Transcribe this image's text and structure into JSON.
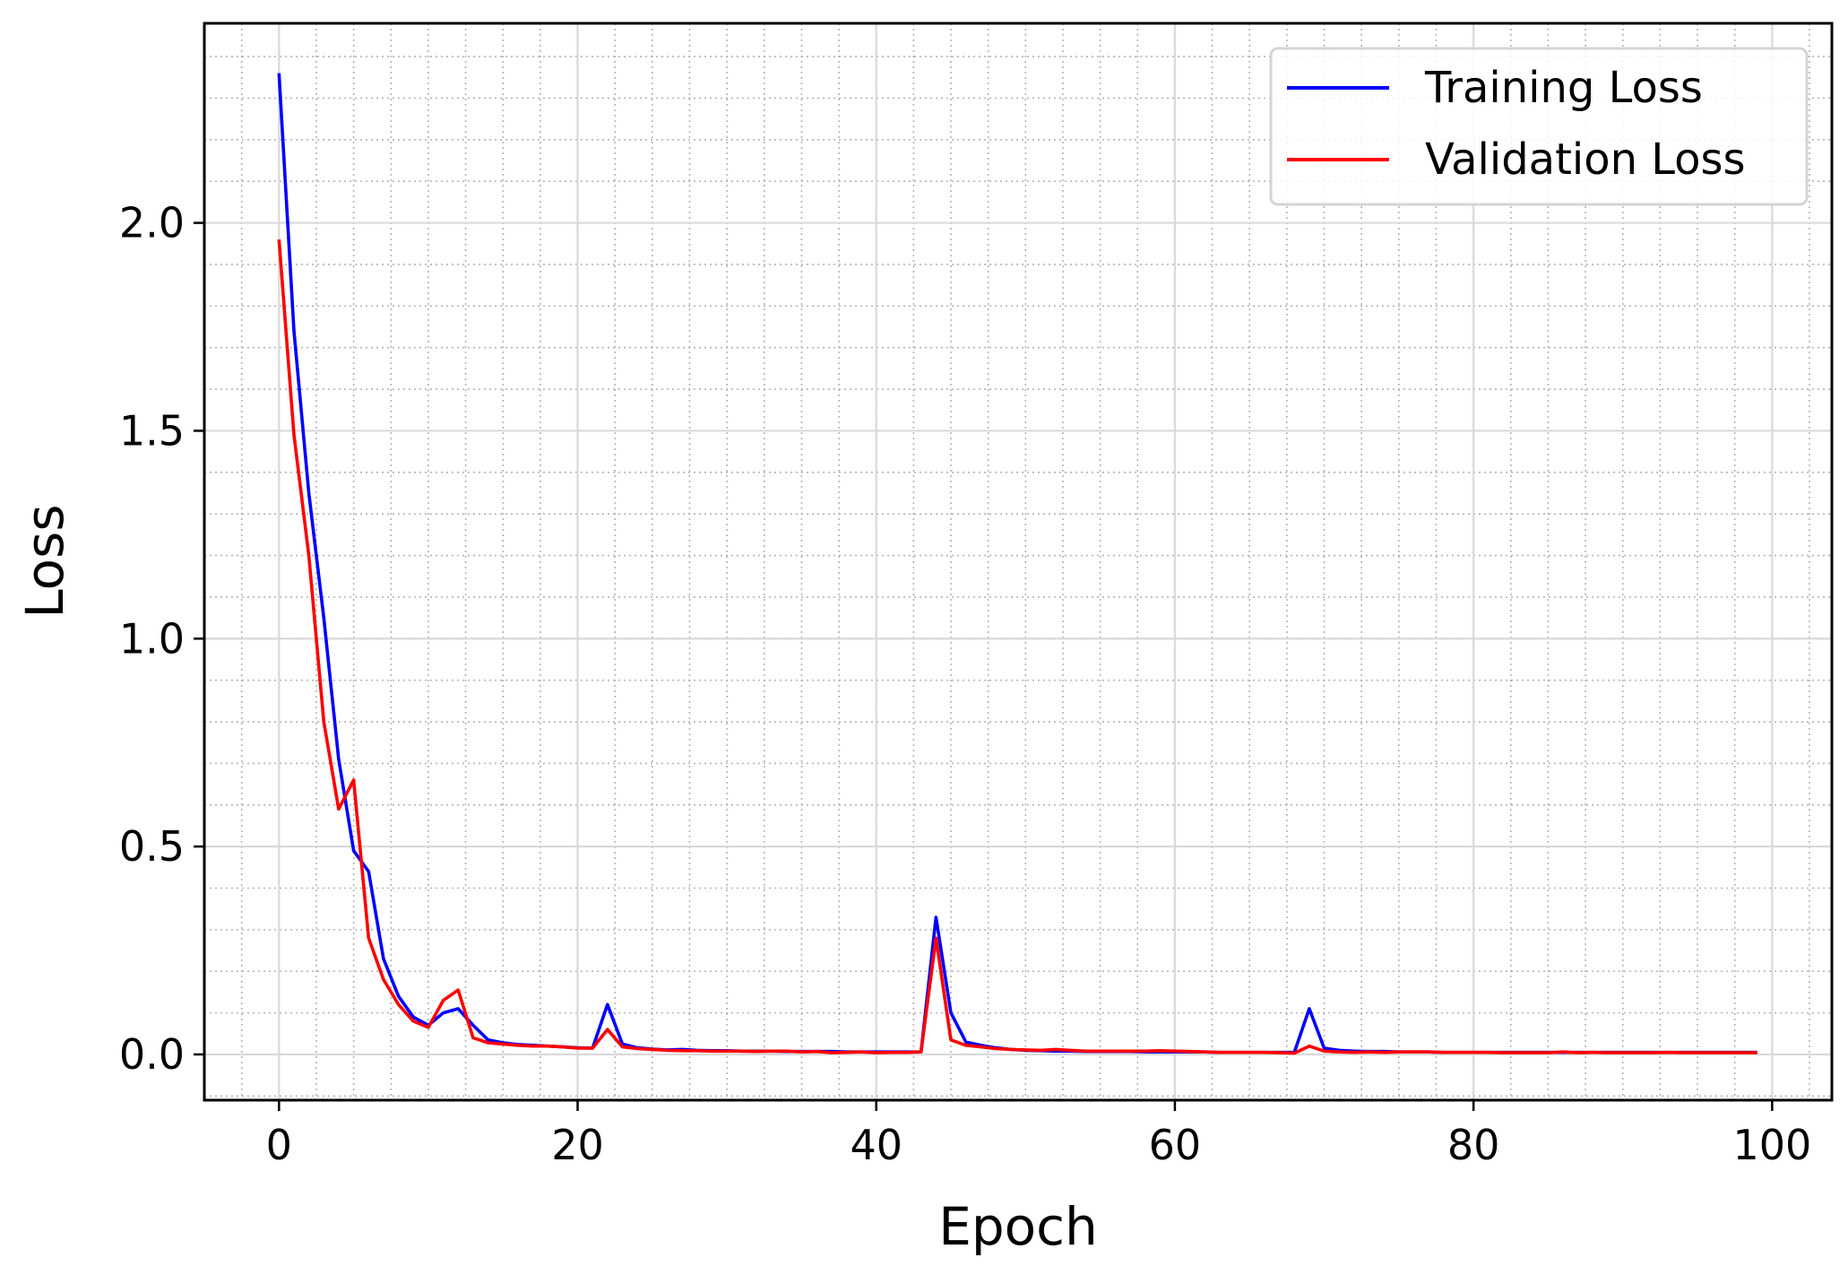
{
  "chart_data": {
    "type": "line",
    "xlabel": "Epoch",
    "ylabel": "Loss",
    "xlim": [
      -5,
      104
    ],
    "ylim": [
      -0.11,
      2.48
    ],
    "xticks": [
      0,
      20,
      40,
      60,
      80,
      100
    ],
    "yticks": [
      0.0,
      0.5,
      1.0,
      1.5,
      2.0
    ],
    "xtick_labels": [
      "0",
      "20",
      "40",
      "60",
      "80",
      "100"
    ],
    "ytick_labels": [
      "0.0",
      "0.5",
      "1.0",
      "1.5",
      "2.0"
    ],
    "x_minor_step": 2.5,
    "y_minor_step": 0.1,
    "grid": true,
    "legend_position": "top-right",
    "series": [
      {
        "name": "Training Loss",
        "color": "#0000ff",
        "values": [
          2.36,
          1.74,
          1.35,
          1.05,
          0.71,
          0.49,
          0.44,
          0.23,
          0.14,
          0.09,
          0.07,
          0.1,
          0.11,
          0.07,
          0.035,
          0.028,
          0.024,
          0.022,
          0.02,
          0.018,
          0.016,
          0.015,
          0.12,
          0.025,
          0.016,
          0.013,
          0.011,
          0.012,
          0.01,
          0.009,
          0.009,
          0.008,
          0.008,
          0.008,
          0.007,
          0.007,
          0.007,
          0.007,
          0.006,
          0.006,
          0.006,
          0.006,
          0.006,
          0.006,
          0.33,
          0.1,
          0.03,
          0.022,
          0.016,
          0.012,
          0.01,
          0.009,
          0.008,
          0.008,
          0.007,
          0.007,
          0.007,
          0.007,
          0.006,
          0.006,
          0.006,
          0.006,
          0.006,
          0.005,
          0.005,
          0.005,
          0.005,
          0.005,
          0.005,
          0.11,
          0.015,
          0.01,
          0.008,
          0.007,
          0.007,
          0.006,
          0.006,
          0.006,
          0.005,
          0.005,
          0.005,
          0.005,
          0.005,
          0.005,
          0.005,
          0.005,
          0.005,
          0.005,
          0.005,
          0.005,
          0.005,
          0.005,
          0.005,
          0.005,
          0.005,
          0.005,
          0.005,
          0.005,
          0.005,
          0.005
        ]
      },
      {
        "name": "Validation Loss",
        "color": "#ff0000",
        "values": [
          1.96,
          1.49,
          1.2,
          0.8,
          0.59,
          0.66,
          0.28,
          0.18,
          0.12,
          0.08,
          0.065,
          0.13,
          0.155,
          0.04,
          0.028,
          0.025,
          0.022,
          0.02,
          0.02,
          0.018,
          0.015,
          0.015,
          0.06,
          0.018,
          0.014,
          0.012,
          0.01,
          0.009,
          0.009,
          0.008,
          0.008,
          0.008,
          0.007,
          0.008,
          0.008,
          0.006,
          0.007,
          0.004,
          0.005,
          0.006,
          0.004,
          0.005,
          0.005,
          0.006,
          0.28,
          0.035,
          0.022,
          0.018,
          0.014,
          0.012,
          0.011,
          0.01,
          0.012,
          0.01,
          0.008,
          0.008,
          0.008,
          0.008,
          0.008,
          0.009,
          0.008,
          0.007,
          0.006,
          0.005,
          0.005,
          0.005,
          0.005,
          0.004,
          0.003,
          0.02,
          0.008,
          0.006,
          0.005,
          0.006,
          0.005,
          0.006,
          0.006,
          0.006,
          0.005,
          0.005,
          0.005,
          0.005,
          0.004,
          0.004,
          0.004,
          0.004,
          0.006,
          0.004,
          0.005,
          0.004,
          0.004,
          0.004,
          0.004,
          0.005,
          0.004,
          0.004,
          0.004,
          0.004,
          0.004,
          0.004
        ]
      }
    ]
  }
}
